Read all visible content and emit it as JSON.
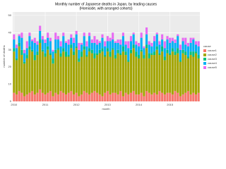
{
  "chart_data": {
    "type": "stacked-bar",
    "title": "Monthly number of Japanese deaths in Japan, by leading causes",
    "subtitle": "(Homicide, with arranged cohorts)",
    "x_label": "month",
    "y_label": "number of deaths",
    "legend_title": "cause",
    "categories": [
      "2010",
      null,
      null,
      null,
      null,
      null,
      null,
      null,
      null,
      null,
      null,
      null,
      "2011",
      null,
      null,
      null,
      null,
      null,
      null,
      null,
      null,
      null,
      null,
      null,
      "2012",
      null,
      null,
      null,
      null,
      null,
      null,
      null,
      null,
      null,
      null,
      null,
      "2013",
      null,
      null,
      null,
      null,
      null,
      null,
      null,
      null,
      null,
      null,
      null,
      "2014",
      null,
      null,
      null,
      null,
      null,
      null,
      null,
      null,
      null,
      null,
      null,
      "2015",
      null,
      null,
      null,
      null,
      null,
      null,
      null,
      null,
      null,
      null,
      null
    ],
    "ylim": [
      0,
      52
    ],
    "yticks": [
      0,
      10,
      20,
      30,
      40,
      50
    ],
    "grid": true,
    "series": [
      {
        "name": "cause1",
        "color": "#F8766D",
        "values": [
          5,
          4,
          6,
          5,
          3,
          4,
          5,
          6,
          4,
          5,
          7,
          5,
          4,
          5,
          6,
          3,
          5,
          4,
          6,
          5,
          4,
          5,
          6,
          4,
          5,
          3,
          4,
          6,
          5,
          4,
          5,
          6,
          5,
          4,
          3,
          5,
          6,
          4,
          5,
          5,
          4,
          6,
          3,
          5,
          4,
          5,
          6,
          4,
          4,
          5,
          3,
          6,
          5,
          4,
          5,
          4,
          6,
          5,
          4,
          5,
          5,
          4,
          6,
          5,
          3,
          4,
          5,
          6,
          4,
          5,
          4,
          5
        ]
      },
      {
        "name": "cause2",
        "color": "#A3A500",
        "values": [
          24,
          20,
          26,
          22,
          19,
          21,
          25,
          23,
          20,
          22,
          27,
          24,
          22,
          25,
          21,
          19,
          23,
          26,
          20,
          24,
          22,
          21,
          25,
          23,
          26,
          20,
          22,
          24,
          21,
          25,
          23,
          19,
          22,
          24,
          26,
          21,
          23,
          22,
          25,
          20,
          24,
          21,
          26,
          22,
          19,
          23,
          25,
          22,
          21,
          24,
          22,
          25,
          20,
          23,
          22,
          26,
          21,
          24,
          20,
          23,
          22,
          25,
          21,
          23,
          20,
          24,
          22,
          19,
          23,
          21,
          24,
          20
        ]
      },
      {
        "name": "cause3",
        "color": "#00BF7D",
        "values": [
          2,
          1,
          2,
          3,
          1,
          2,
          2,
          1,
          3,
          2,
          2,
          1,
          2,
          2,
          1,
          3,
          2,
          1,
          2,
          2,
          3,
          1,
          2,
          2,
          1,
          2,
          3,
          2,
          1,
          2,
          2,
          3,
          1,
          2,
          2,
          1,
          2,
          3,
          1,
          2,
          2,
          1,
          3,
          2,
          1,
          2,
          2,
          3,
          2,
          1,
          2,
          2,
          3,
          1,
          2,
          2,
          1,
          3,
          2,
          2,
          1,
          2,
          2,
          3,
          1,
          2,
          2,
          1,
          2,
          3,
          1,
          2
        ]
      },
      {
        "name": "cause4",
        "color": "#00B0F6",
        "values": [
          5,
          6,
          4,
          7,
          5,
          4,
          6,
          5,
          7,
          4,
          5,
          6,
          6,
          5,
          7,
          4,
          6,
          5,
          4,
          7,
          5,
          6,
          4,
          5,
          7,
          5,
          4,
          6,
          5,
          7,
          4,
          6,
          5,
          4,
          6,
          5,
          4,
          6,
          5,
          7,
          4,
          5,
          6,
          4,
          7,
          5,
          6,
          4,
          5,
          7,
          4,
          6,
          5,
          4,
          6,
          7,
          5,
          4,
          5,
          6,
          6,
          4,
          5,
          7,
          6,
          5,
          4,
          6,
          5,
          7,
          4,
          5
        ]
      },
      {
        "name": "cause5",
        "color": "#E76BF3",
        "values": [
          3,
          2,
          1,
          3,
          2,
          4,
          2,
          1,
          3,
          2,
          3,
          2,
          2,
          3,
          2,
          1,
          4,
          2,
          3,
          2,
          1,
          3,
          2,
          3,
          2,
          4,
          1,
          2,
          3,
          2,
          2,
          4,
          3,
          1,
          2,
          3,
          3,
          2,
          4,
          1,
          2,
          3,
          2,
          2,
          4,
          3,
          1,
          2,
          2,
          3,
          1,
          4,
          2,
          2,
          3,
          1,
          2,
          3,
          4,
          2,
          3,
          2,
          2,
          1,
          3,
          2,
          4,
          2,
          3,
          1,
          2,
          3
        ]
      }
    ]
  }
}
